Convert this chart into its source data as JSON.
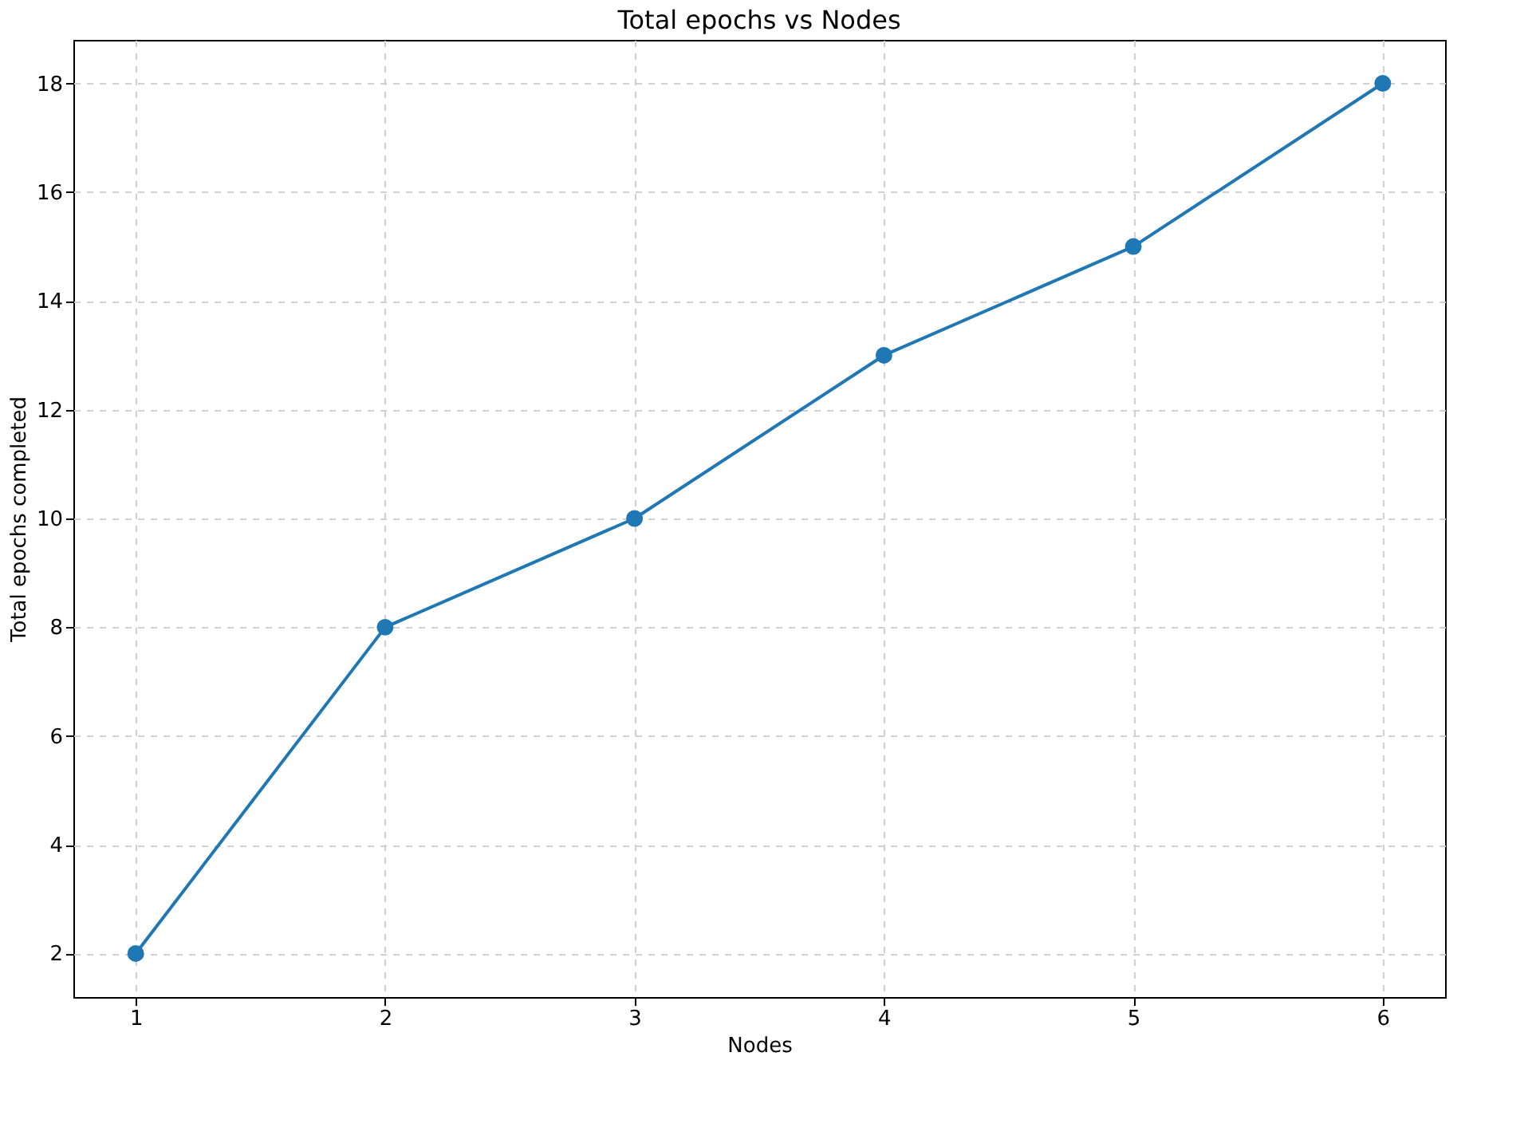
{
  "chart_data": {
    "type": "line",
    "title": "Total epochs vs Nodes",
    "xlabel": "Nodes",
    "ylabel": "Total epochs completed",
    "x": [
      1,
      2,
      3,
      4,
      5,
      6
    ],
    "series": [
      {
        "color": "#1f77b4",
        "values": [
          2,
          8,
          10,
          13,
          15,
          18
        ]
      }
    ],
    "xlim": [
      0.75,
      6.25
    ],
    "xticks": [
      1,
      2,
      3,
      4,
      5,
      6
    ],
    "ylim": [
      1.2,
      18.8
    ],
    "yticks": [
      2,
      4,
      6,
      8,
      10,
      12,
      14,
      16,
      18
    ],
    "grid": true,
    "marker": "circle",
    "line_style": "solid"
  }
}
